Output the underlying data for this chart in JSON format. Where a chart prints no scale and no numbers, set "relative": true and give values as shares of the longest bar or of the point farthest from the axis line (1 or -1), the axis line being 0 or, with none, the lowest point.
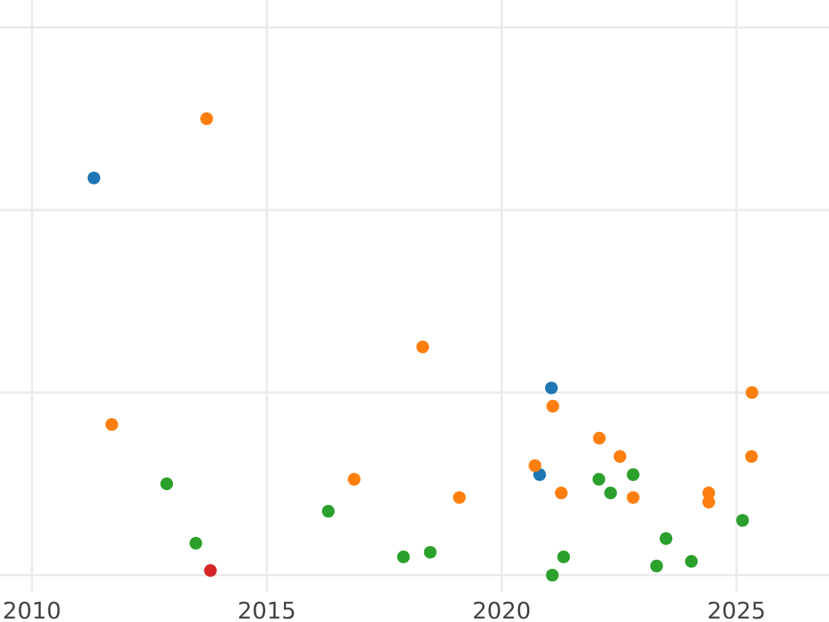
{
  "chart_data": {
    "type": "scatter",
    "relative": true,
    "xlim": [
      2009.32,
      2026.97
    ],
    "xticks": [
      2010,
      2015,
      2020,
      2025
    ],
    "tick_labels": "x",
    "grid": true,
    "marker": "circle",
    "series": [
      {
        "color": "#1f77b4",
        "x": [
          2011.32,
          2021.06,
          2020.81
        ],
        "values": [
          0.87,
          0.41,
          0.22
        ]
      },
      {
        "color": "#ff7f0e",
        "x": [
          2013.72,
          2011.7,
          2016.86,
          2018.32,
          2019.1,
          2020.71,
          2021.09,
          2021.27,
          2022.08,
          2022.52,
          2022.8,
          2024.41,
          2024.41,
          2025.33,
          2025.32
        ],
        "values": [
          1.0,
          0.33,
          0.21,
          0.5,
          0.17,
          0.24,
          0.37,
          0.18,
          0.3,
          0.26,
          0.17,
          0.18,
          0.16,
          0.4,
          0.26
        ]
      },
      {
        "color": "#2ca02c",
        "x": [
          2012.87,
          2013.49,
          2016.31,
          2017.91,
          2018.48,
          2021.08,
          2021.32,
          2022.07,
          2022.32,
          2022.8,
          2023.3,
          2023.5,
          2024.04,
          2025.13
        ],
        "values": [
          0.2,
          0.07,
          0.14,
          0.04,
          0.05,
          0.0,
          0.04,
          0.21,
          0.18,
          0.22,
          0.02,
          0.08,
          0.03,
          0.12
        ]
      },
      {
        "color": "#d62728",
        "x": [
          2013.8
        ],
        "values": [
          0.01
        ]
      }
    ]
  }
}
